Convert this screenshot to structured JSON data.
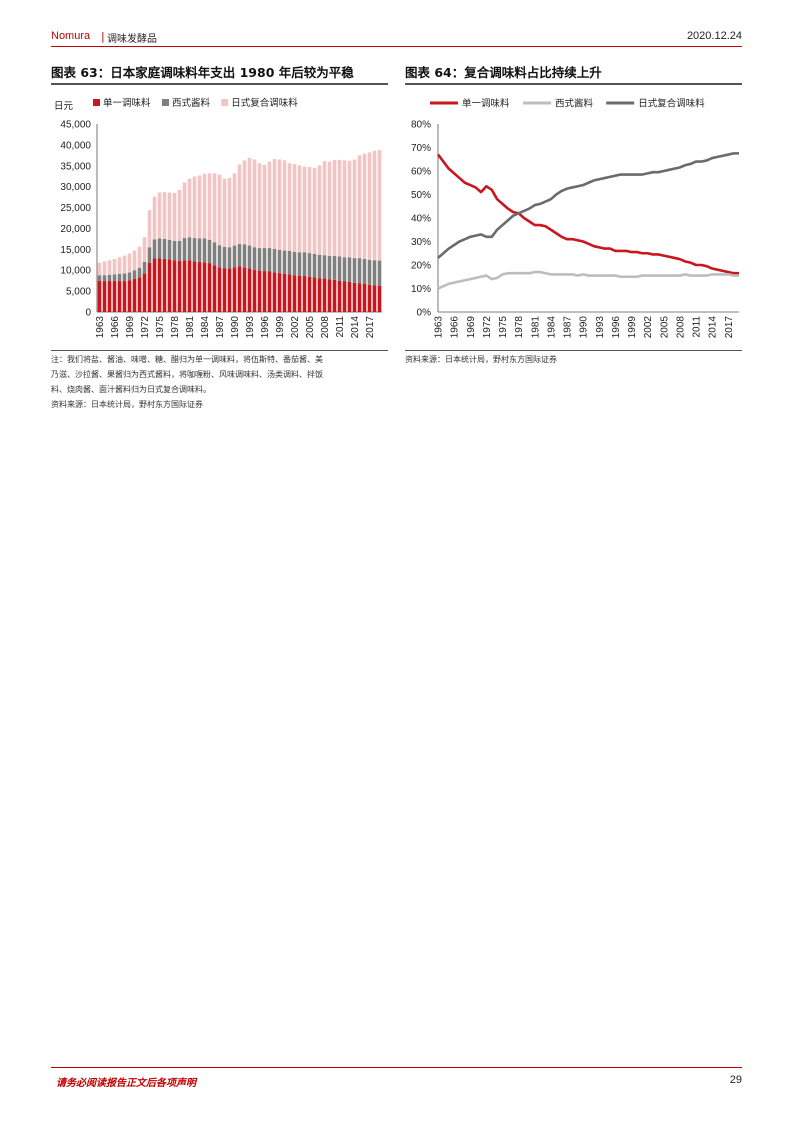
{
  "header": {
    "brand": "Nomura",
    "separator": "|",
    "section": "调味发酵品",
    "date": "2020.12.24"
  },
  "figure63": {
    "title": "图表 63：日本家庭调味料年支出 1980 年后较为平稳",
    "notes": [
      "注：我们将盐、酱油、味噌、糖、醋归为单一调味料，将伍斯特、番茄酱、美",
      "乃滋、沙拉酱、果酱归为西式酱料，将咖喱粉、风味调味料、汤类调料、拌饭",
      "料、烧肉酱、面汁酱料归为日式复合调味料。"
    ],
    "source": "资料来源：日本统计局，野村东方国际证券"
  },
  "figure64": {
    "title": "图表 64：复合调味料占比持续上升",
    "source": "资料来源：日本统计局，野村东方国际证券"
  },
  "chart_data": [
    {
      "type": "bar",
      "stacked": true,
      "unit_label": "日元",
      "ylim": [
        0,
        45000
      ],
      "yticks": [
        "0",
        "5,000",
        "10,000",
        "15,000",
        "20,000",
        "25,000",
        "30,000",
        "35,000",
        "40,000",
        "45,000"
      ],
      "x": [
        1963,
        1964,
        1965,
        1966,
        1967,
        1968,
        1969,
        1970,
        1971,
        1972,
        1973,
        1974,
        1975,
        1976,
        1977,
        1978,
        1979,
        1980,
        1981,
        1982,
        1983,
        1984,
        1985,
        1986,
        1987,
        1988,
        1989,
        1990,
        1991,
        1992,
        1993,
        1994,
        1995,
        1996,
        1997,
        1998,
        1999,
        2000,
        2001,
        2002,
        2003,
        2004,
        2005,
        2006,
        2007,
        2008,
        2009,
        2010,
        2011,
        2012,
        2013,
        2014,
        2015,
        2016,
        2017,
        2018,
        2019
      ],
      "xtick_labels": [
        "1963",
        "1966",
        "1969",
        "1972",
        "1975",
        "1978",
        "1981",
        "1984",
        "1987",
        "1990",
        "1993",
        "1996",
        "1999",
        "2002",
        "2005",
        "2008",
        "2011",
        "2014",
        "2017"
      ],
      "legend_position": "top",
      "series": [
        {
          "name": "单一调味料",
          "color": "#c8171e",
          "values": [
            7500,
            7400,
            7400,
            7400,
            7400,
            7400,
            7600,
            7900,
            8300,
            9200,
            11800,
            12800,
            12800,
            12700,
            12600,
            12400,
            12200,
            12400,
            12400,
            12100,
            12000,
            11900,
            11700,
            11200,
            10700,
            10500,
            10400,
            10700,
            10900,
            10700,
            10400,
            10100,
            9900,
            9800,
            9700,
            9500,
            9300,
            9100,
            9000,
            8800,
            8700,
            8600,
            8400,
            8300,
            8100,
            8000,
            7800,
            7700,
            7500,
            7300,
            7200,
            7000,
            6900,
            6700,
            6500,
            6400,
            6300
          ]
        },
        {
          "name": "西式酱料",
          "color": "#7f7f7f",
          "values": [
            1300,
            1400,
            1500,
            1600,
            1700,
            1800,
            1900,
            2100,
            2300,
            2800,
            3700,
            4600,
            4800,
            4800,
            4700,
            4600,
            4800,
            5300,
            5500,
            5600,
            5600,
            5700,
            5600,
            5500,
            5300,
            5100,
            5100,
            5200,
            5400,
            5500,
            5500,
            5400,
            5400,
            5500,
            5600,
            5600,
            5600,
            5600,
            5600,
            5600,
            5600,
            5700,
            5700,
            5600,
            5600,
            5600,
            5600,
            5700,
            5800,
            5800,
            5900,
            5900,
            6000,
            6000,
            6000,
            6000,
            6000
          ]
        },
        {
          "name": "日式复合调味料",
          "color": "#f2c4c4",
          "values": [
            3000,
            3300,
            3500,
            3700,
            4000,
            4300,
            4500,
            4700,
            5000,
            5900,
            8900,
            10200,
            11000,
            11200,
            11300,
            11500,
            12200,
            13300,
            14000,
            14700,
            15100,
            15500,
            15900,
            16500,
            16900,
            16300,
            16600,
            17300,
            19000,
            20100,
            21000,
            21000,
            20300,
            19900,
            20700,
            21500,
            21600,
            21600,
            21000,
            21000,
            20800,
            20500,
            20600,
            20600,
            21400,
            22500,
            22600,
            23000,
            23100,
            23200,
            23100,
            23600,
            24600,
            25200,
            25700,
            26200,
            26500
          ]
        }
      ]
    },
    {
      "type": "line",
      "ylim": [
        0,
        80
      ],
      "yticks": [
        "0%",
        "10%",
        "20%",
        "30%",
        "40%",
        "50%",
        "60%",
        "70%",
        "80%"
      ],
      "x": [
        1963,
        1964,
        1965,
        1966,
        1967,
        1968,
        1969,
        1970,
        1971,
        1972,
        1973,
        1974,
        1975,
        1976,
        1977,
        1978,
        1979,
        1980,
        1981,
        1982,
        1983,
        1984,
        1985,
        1986,
        1987,
        1988,
        1989,
        1990,
        1991,
        1992,
        1993,
        1994,
        1995,
        1996,
        1997,
        1998,
        1999,
        2000,
        2001,
        2002,
        2003,
        2004,
        2005,
        2006,
        2007,
        2008,
        2009,
        2010,
        2011,
        2012,
        2013,
        2014,
        2015,
        2016,
        2017,
        2018,
        2019
      ],
      "xtick_labels": [
        "1963",
        "1966",
        "1969",
        "1972",
        "1975",
        "1978",
        "1981",
        "1984",
        "1987",
        "1990",
        "1993",
        "1996",
        "1999",
        "2002",
        "2005",
        "2008",
        "2011",
        "2014",
        "2017"
      ],
      "legend_position": "top",
      "series": [
        {
          "name": "单一调味料",
          "color": "#c8171e",
          "values": [
            67,
            64,
            61,
            59,
            57,
            55,
            54,
            53,
            51,
            53.5,
            52,
            48,
            46,
            44,
            42.5,
            42,
            40,
            38.5,
            37,
            37,
            36.5,
            35,
            33.5,
            32,
            31,
            31,
            30.5,
            30,
            29,
            28,
            27.5,
            27,
            27,
            26,
            26,
            26,
            25.5,
            25.5,
            25,
            25,
            24.5,
            24.5,
            24,
            23.5,
            23,
            22.5,
            21.5,
            21,
            20,
            20,
            19.5,
            18.5,
            18,
            17.5,
            17,
            16.5,
            16.5
          ]
        },
        {
          "name": "西式酱料",
          "color": "#bdbdbd",
          "values": [
            10,
            11,
            12,
            12.5,
            13,
            13.5,
            14,
            14.5,
            15,
            15.5,
            14,
            14.5,
            16,
            16.5,
            16.5,
            16.5,
            16.5,
            16.5,
            17,
            17,
            16.5,
            16,
            16,
            16,
            16,
            16,
            15.5,
            16,
            15.5,
            15.5,
            15.5,
            15.5,
            15.5,
            15.5,
            15,
            15,
            15,
            15,
            15.5,
            15.5,
            15.5,
            15.5,
            15.5,
            15.5,
            15.5,
            15.5,
            16,
            15.5,
            15.5,
            15.5,
            15.5,
            16,
            16,
            16,
            16,
            15.5,
            15.5
          ]
        },
        {
          "name": "日式复合调味料",
          "color": "#6b6b6b",
          "values": [
            23,
            25,
            27,
            28.5,
            30,
            31,
            32,
            32.5,
            33,
            32,
            32,
            35,
            37,
            39,
            41,
            42,
            43,
            44,
            45.5,
            46,
            47,
            48,
            50,
            51.5,
            52.5,
            53,
            53.5,
            54,
            55,
            56,
            56.5,
            57,
            57.5,
            58,
            58.5,
            58.5,
            58.5,
            58.5,
            58.5,
            59,
            59.5,
            59.5,
            60,
            60.5,
            61,
            61.5,
            62.5,
            63,
            64,
            64,
            64.5,
            65.5,
            66,
            66.5,
            67,
            67.5,
            67.5
          ]
        }
      ]
    }
  ],
  "footer": {
    "disclaimer": "请务必阅读报告正文后各项声明",
    "page": "29"
  }
}
